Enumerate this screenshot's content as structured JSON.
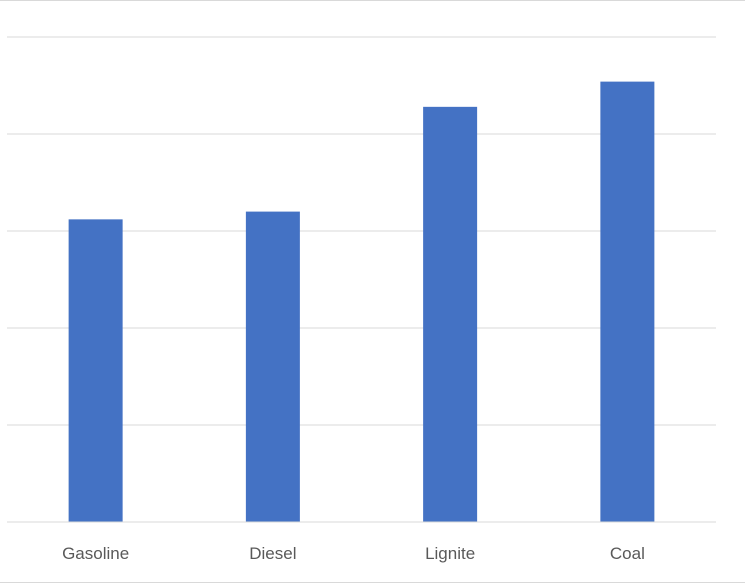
{
  "chart_data": {
    "type": "bar",
    "title": "",
    "xlabel": "",
    "ylabel": "",
    "categories": [
      "Gasoline",
      "Diesel",
      "Lignite",
      "Coal"
    ],
    "values": [
      3.12,
      3.2,
      4.28,
      4.54
    ],
    "ylim": [
      0,
      5
    ],
    "grid": true,
    "legend": "none",
    "colors": {
      "bar": "#4472C4",
      "grid": "#d9d9d9",
      "axis": "#d9d9d9",
      "tick_label": "#595959"
    }
  }
}
